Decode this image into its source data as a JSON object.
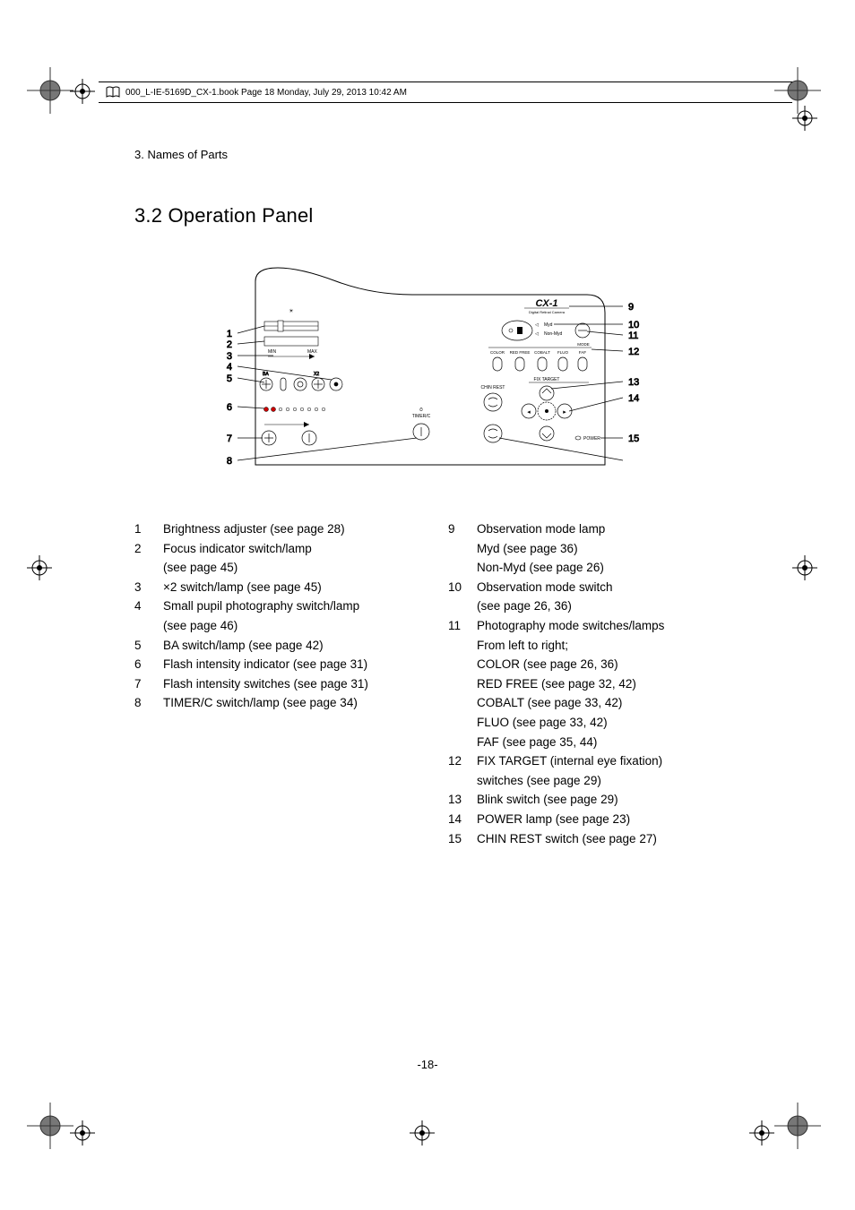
{
  "print_header": {
    "text": "000_L-IE-5169D_CX-1.book  Page 18  Monday, July 29, 2013  10:42 AM"
  },
  "chapter": "3. Names of Parts",
  "section_title": "3.2 Operation Panel",
  "page_number": "-18-",
  "diagram": {
    "product_label": "CX-1",
    "product_sublabel": "Digital Retinal Camera",
    "left_callouts": [
      "1",
      "2",
      "3",
      "4",
      "5",
      "6",
      "7",
      "8"
    ],
    "right_callouts": [
      "9",
      "10",
      "11",
      "12",
      "13",
      "14",
      "15"
    ],
    "panel_labels": {
      "myd": "Myd",
      "nonmyd": "Non-Myd",
      "mode": "MODE",
      "color": "COLOR",
      "redfree": "RED FREE",
      "cobalt": "COBALT",
      "fluo": "FLUO",
      "faf": "FAF",
      "fixtarget": "FIX TARGET",
      "chinrest": "CHIN REST",
      "power": "POWER",
      "ba": "BA",
      "x2": "X2",
      "min": "MIN",
      "max": "MAX",
      "timerc": "TIMER/C"
    },
    "colors": {
      "line": "#000000",
      "bg": "#ffffff",
      "callout_font": "#000000"
    }
  },
  "legend": {
    "left": [
      {
        "n": "1",
        "lines": [
          "Brightness adjuster (see page 28)"
        ]
      },
      {
        "n": "2",
        "lines": [
          "Focus indicator switch/lamp",
          "(see page 45)"
        ]
      },
      {
        "n": "3",
        "lines": [
          "×2 switch/lamp (see page 45)"
        ]
      },
      {
        "n": "4",
        "lines": [
          "Small pupil photography switch/lamp",
          "(see page 46)"
        ]
      },
      {
        "n": "5",
        "lines": [
          "BA switch/lamp (see page 42)"
        ]
      },
      {
        "n": "6",
        "lines": [
          "Flash intensity indicator (see page 31)"
        ]
      },
      {
        "n": "7",
        "lines": [
          "Flash intensity switches (see page 31)"
        ]
      },
      {
        "n": "8",
        "lines": [
          "TIMER/C switch/lamp (see page 34)"
        ]
      }
    ],
    "right": [
      {
        "n": "9",
        "lines": [
          "Observation mode lamp",
          "Myd (see page 36)",
          "Non-Myd (see page 26)"
        ]
      },
      {
        "n": "10",
        "lines": [
          "Observation mode switch",
          "(see page 26, 36)"
        ]
      },
      {
        "n": "11",
        "lines": [
          "Photography mode switches/lamps",
          "From left to right;",
          "COLOR (see page 26, 36)",
          "RED FREE (see page 32, 42)",
          "COBALT (see page 33, 42)",
          "FLUO (see page 33, 42)",
          "FAF (see page 35, 44)"
        ]
      },
      {
        "n": "12",
        "lines": [
          "FIX TARGET (internal eye fixation)",
          "switches (see page 29)"
        ]
      },
      {
        "n": "13",
        "lines": [
          "Blink switch (see page 29)"
        ]
      },
      {
        "n": "14",
        "lines": [
          "POWER lamp (see page 23)"
        ]
      },
      {
        "n": "15",
        "lines": [
          "CHIN REST switch (see page 27)"
        ]
      }
    ]
  }
}
